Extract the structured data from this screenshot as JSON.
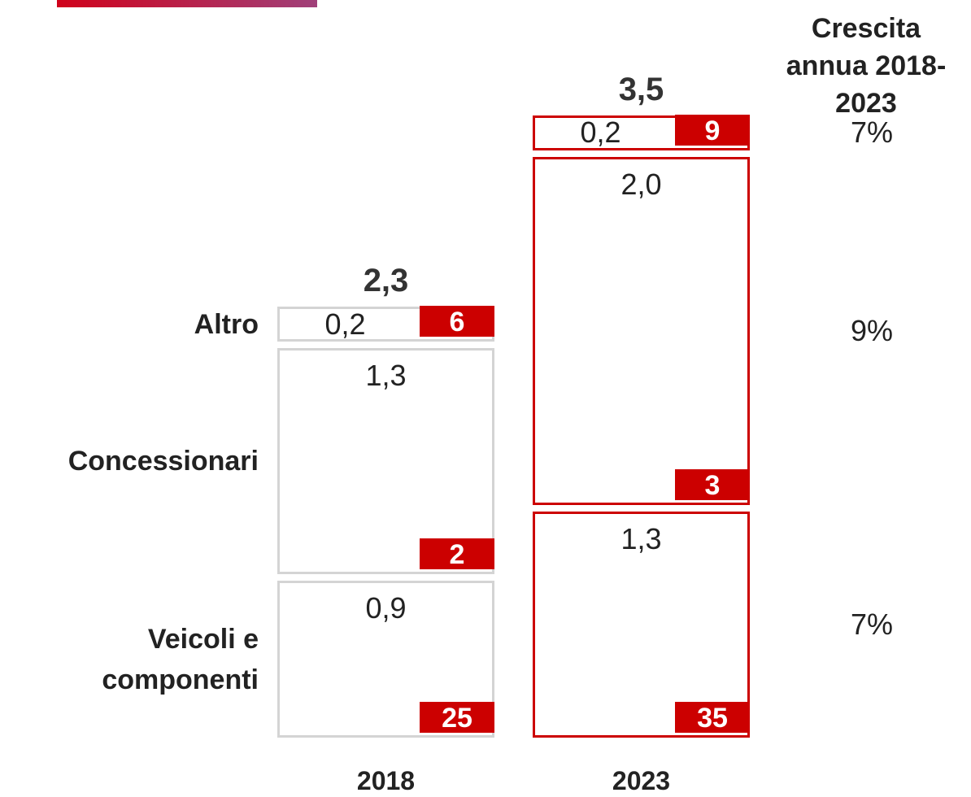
{
  "chart_data": {
    "type": "bar",
    "stacked": true,
    "categories": [
      "2018",
      "2023"
    ],
    "category_colors": [
      "#d4d4d4",
      "#cc0000"
    ],
    "badge_color": "#cc0000",
    "series": [
      {
        "name": "Veicoli e componenti",
        "values": [
          0.9,
          1.3
        ],
        "value_labels": [
          "0,9",
          "1,3"
        ],
        "badges": [
          25,
          35
        ]
      },
      {
        "name": "Concessionari",
        "values": [
          1.3,
          2.0
        ],
        "value_labels": [
          "1,3",
          "2,0"
        ],
        "badges": [
          2,
          3
        ]
      },
      {
        "name": "Altro",
        "values": [
          0.2,
          0.2
        ],
        "value_labels": [
          "0,2",
          "0,2"
        ],
        "badges": [
          6,
          9
        ]
      }
    ],
    "totals": [
      2.3,
      3.5
    ],
    "total_labels": [
      "2,3",
      "3,5"
    ],
    "growth_title": "Crescita annua 2018-2023",
    "growth": [
      7,
      9,
      7
    ],
    "growth_labels": [
      "7%",
      "9%",
      "7%"
    ]
  }
}
